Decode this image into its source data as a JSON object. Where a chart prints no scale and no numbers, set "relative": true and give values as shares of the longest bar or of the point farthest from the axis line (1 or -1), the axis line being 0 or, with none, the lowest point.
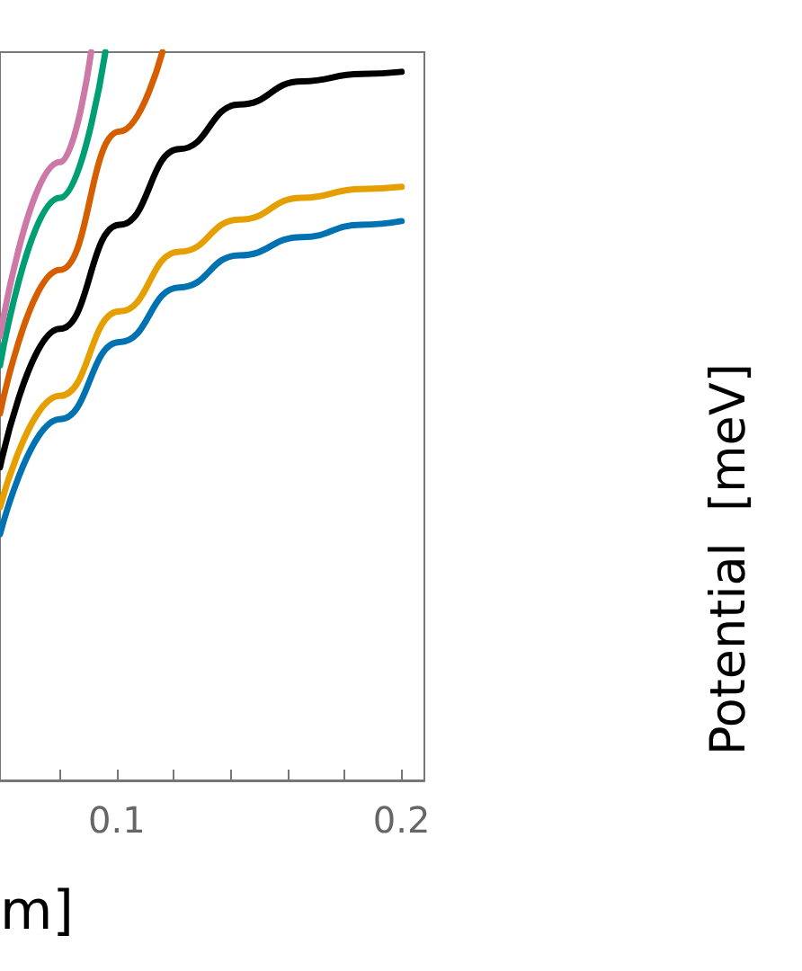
{
  "chart_data": {
    "type": "line",
    "relative": true,
    "xlabel": "m]",
    "annotations": [
      "Potential  [meV]"
    ],
    "xlim": [
      0.059,
      0.208
    ],
    "xticks": [
      {
        "value": 0.08,
        "label": null
      },
      0.1,
      {
        "value": 0.12,
        "label": null
      },
      {
        "value": 0.14,
        "label": null
      },
      {
        "value": 0.16,
        "label": null
      },
      {
        "value": 0.18,
        "label": null
      },
      0.2
    ],
    "grid": false,
    "marker": "none",
    "line_style": "solid",
    "series": [
      {
        "color": "#0072b2",
        "x": [
          0.059,
          0.08,
          0.101,
          0.122,
          0.143,
          0.165,
          0.186,
          0.2
        ],
        "values": [
          0.338,
          0.496,
          0.602,
          0.677,
          0.721,
          0.746,
          0.763,
          0.768
        ]
      },
      {
        "color": "#e69f00",
        "x": [
          0.059,
          0.08,
          0.101,
          0.122,
          0.143,
          0.165,
          0.186,
          0.2
        ],
        "values": [
          0.375,
          0.528,
          0.644,
          0.726,
          0.77,
          0.8,
          0.812,
          0.815
        ]
      },
      {
        "color": "#000000",
        "x": [
          0.059,
          0.08,
          0.101,
          0.122,
          0.143,
          0.165,
          0.186,
          0.2
        ],
        "values": [
          0.43,
          0.62,
          0.763,
          0.867,
          0.928,
          0.96,
          0.97,
          0.973
        ]
      },
      {
        "color": "#d55e00",
        "x": [
          0.059,
          0.08,
          0.101,
          0.116
        ],
        "values": [
          0.504,
          0.701,
          0.891,
          1
        ]
      },
      {
        "color": "#009e73",
        "x": [
          0.059,
          0.08,
          0.096
        ],
        "values": [
          0.57,
          0.8,
          1
        ]
      },
      {
        "color": "#cc79a7",
        "x": [
          0.059,
          0.08,
          0.091
        ],
        "values": [
          0.61,
          0.849,
          1
        ]
      }
    ]
  }
}
